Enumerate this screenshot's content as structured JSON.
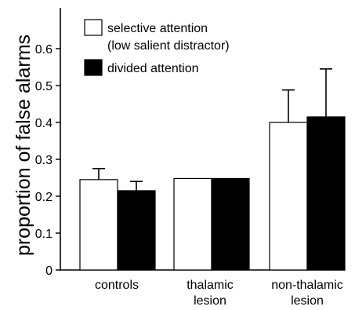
{
  "chart_data": {
    "type": "bar",
    "categories": [
      [
        "controls"
      ],
      [
        "thalamic",
        "lesion"
      ],
      [
        "non-thalamic",
        "lesion"
      ]
    ],
    "series": [
      {
        "name": "selective attention\n(low salient distractor)",
        "values": [
          0.245,
          0.248,
          0.4
        ],
        "error": [
          0.03,
          0.0,
          0.088
        ],
        "color": "#ffffff"
      },
      {
        "name": "divided attention",
        "values": [
          0.215,
          0.248,
          0.415
        ],
        "error": [
          0.025,
          0.0,
          0.13
        ],
        "color": "#000000"
      }
    ],
    "title": "",
    "xlabel": "",
    "ylabel": "proportion of false alarms",
    "ylim": [
      0,
      0.7
    ],
    "yticks": [
      0,
      0.1,
      0.2,
      0.3,
      0.4,
      0.5,
      0.6
    ],
    "ytick_labels": [
      "0",
      "0.1",
      "0.2",
      "0.3",
      "0.4",
      "0.5",
      "0.6"
    ],
    "legend_position": "top-left",
    "grid": false
  }
}
